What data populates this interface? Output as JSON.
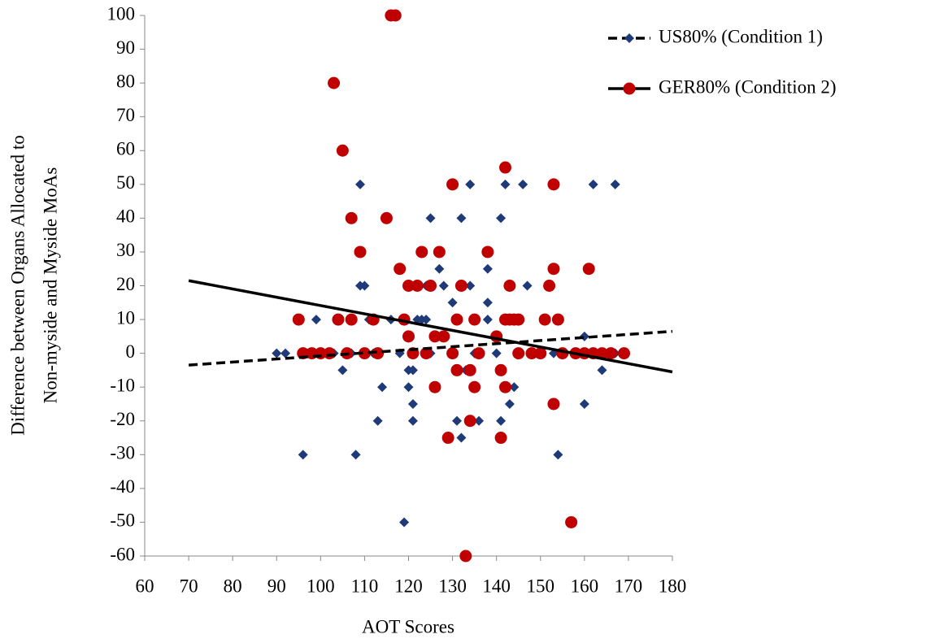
{
  "chart_data": {
    "type": "scatter",
    "x_label": "AOT Scores",
    "y_label": [
      "Difference between Organs Allocated to",
      "Non-myside and Myside MoAs"
    ],
    "xlim": [
      60,
      180
    ],
    "xticks": [
      60,
      70,
      80,
      90,
      100,
      110,
      120,
      130,
      140,
      150,
      160,
      170,
      180
    ],
    "ylim": [
      -60,
      100
    ],
    "yticks": [
      -60,
      -50,
      -40,
      -30,
      -20,
      -10,
      0,
      10,
      20,
      30,
      40,
      50,
      60,
      70,
      80,
      90,
      100
    ],
    "grid": false,
    "legend": "top-right",
    "series": [
      {
        "name": "US80% (Condition 1)",
        "color": "#1f3a78",
        "marker": "diamond",
        "line_dash": true,
        "x": [
          90,
          92,
          96,
          97,
          99,
          100,
          103,
          105,
          106,
          107,
          108,
          109,
          109,
          110,
          111,
          112,
          113,
          114,
          116,
          118,
          119,
          120,
          120,
          121,
          121,
          121,
          122,
          123,
          124,
          124,
          125,
          125,
          127,
          128,
          130,
          130,
          131,
          132,
          132,
          133,
          134,
          134,
          135,
          136,
          138,
          138,
          138,
          140,
          141,
          141,
          142,
          142,
          143,
          144,
          145,
          146,
          147,
          150,
          153,
          154,
          155,
          158,
          160,
          160,
          162,
          164,
          167,
          167
        ],
        "values": [
          0,
          0,
          -30,
          0,
          10,
          0,
          0,
          -5,
          0,
          0,
          -30,
          50,
          20,
          20,
          10,
          0,
          -20,
          -10,
          10,
          0,
          -50,
          -5,
          -10,
          -15,
          -20,
          -5,
          10,
          10,
          10,
          20,
          40,
          0,
          25,
          20,
          15,
          0,
          -20,
          -25,
          40,
          -5,
          50,
          20,
          0,
          -20,
          25,
          15,
          10,
          0,
          40,
          -20,
          50,
          -10,
          -15,
          -10,
          0,
          50,
          20,
          0,
          0,
          -30,
          0,
          0,
          5,
          -15,
          50,
          -5,
          50,
          0
        ],
        "trend": {
          "x": [
            70,
            180
          ],
          "values": [
            -3.5,
            6.5
          ]
        }
      },
      {
        "name": "GER80% (Condition 2)",
        "color": "#c00000",
        "marker": "circle",
        "line_dash": false,
        "x": [
          95,
          96,
          98,
          100,
          102,
          103,
          104,
          105,
          106,
          107,
          107,
          109,
          110,
          112,
          113,
          115,
          116,
          117,
          118,
          119,
          120,
          120,
          121,
          122,
          123,
          124,
          125,
          126,
          126,
          127,
          128,
          129,
          130,
          130,
          131,
          131,
          132,
          133,
          134,
          134,
          135,
          135,
          136,
          138,
          140,
          141,
          141,
          142,
          142,
          142,
          143,
          143,
          144,
          145,
          145,
          148,
          150,
          151,
          152,
          153,
          153,
          153,
          154,
          155,
          157,
          158,
          160,
          161,
          162,
          164,
          166,
          169
        ],
        "values": [
          10,
          0,
          0,
          0,
          0,
          80,
          10,
          60,
          0,
          40,
          10,
          30,
          0,
          10,
          0,
          40,
          100,
          100,
          25,
          10,
          20,
          5,
          0,
          20,
          30,
          0,
          20,
          -10,
          5,
          30,
          5,
          -25,
          50,
          0,
          10,
          -5,
          20,
          -60,
          -5,
          -20,
          10,
          -10,
          0,
          30,
          5,
          -5,
          -25,
          55,
          10,
          -10,
          20,
          10,
          10,
          10,
          0,
          0,
          0,
          10,
          20,
          50,
          25,
          -15,
          10,
          0,
          -50,
          0,
          0,
          25,
          0,
          0,
          0,
          0
        ],
        "trend": {
          "x": [
            70,
            180
          ],
          "values": [
            21.5,
            -5.5
          ]
        }
      }
    ]
  }
}
